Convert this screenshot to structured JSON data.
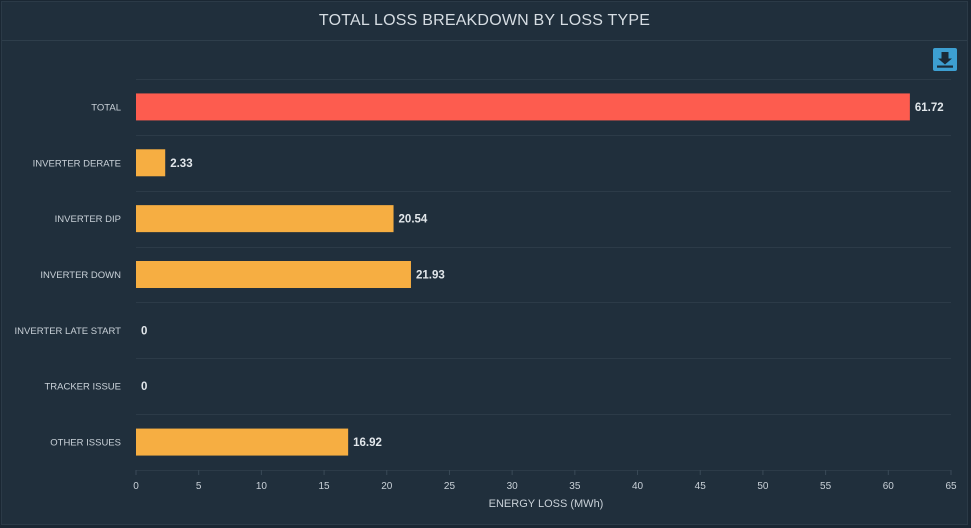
{
  "panel": {
    "title": "TOTAL LOSS BREAKDOWN BY LOSS TYPE",
    "download_icon": "download-icon"
  },
  "colors": {
    "total_bar": "#fd5c4f",
    "category_bar": "#f6ae42",
    "grid": "#2c3b48",
    "background": "#202f3c"
  },
  "chart_data": {
    "type": "bar",
    "orientation": "horizontal",
    "title": "TOTAL LOSS BREAKDOWN BY LOSS TYPE",
    "xlabel": "ENERGY LOSS (MWh)",
    "ylabel": "",
    "categories": [
      "TOTAL",
      "INVERTER DERATE",
      "INVERTER DIP",
      "INVERTER DOWN",
      "INVERTER LATE START",
      "TRACKER ISSUE",
      "OTHER ISSUES"
    ],
    "values": [
      61.72,
      2.33,
      20.54,
      21.93,
      0,
      0,
      16.92
    ],
    "value_labels": [
      "61.72",
      "2.33",
      "20.54",
      "21.93",
      "0",
      "0",
      "16.92"
    ],
    "xlim": [
      0,
      65
    ],
    "xticks": [
      0,
      5,
      10,
      15,
      20,
      25,
      30,
      35,
      40,
      45,
      50,
      55,
      60,
      65
    ],
    "grid": true,
    "legend": "none"
  }
}
